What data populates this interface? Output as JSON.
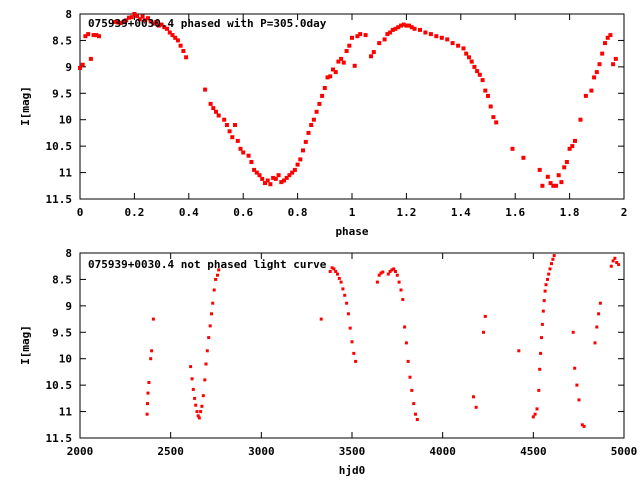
{
  "chart_data": [
    {
      "type": "scatter",
      "title": "075939+0030.4 phased with P=305.0day",
      "xlabel": "phase",
      "ylabel": "I[mag]",
      "xlim": [
        0,
        2
      ],
      "ylim": [
        11.5,
        8
      ],
      "y_inverted": true,
      "grid": false,
      "marker_color": "#ff0000",
      "x_ticks": [
        "0",
        "0.2",
        "0.4",
        "0.6",
        "0.8",
        "1",
        "1.2",
        "1.4",
        "1.6",
        "1.8",
        "2"
      ],
      "y_ticks": [
        "8",
        "8.5",
        "9",
        "9.5",
        "10",
        "10.5",
        "11",
        "11.5"
      ],
      "series": [
        {
          "points": [
            [
              0.0,
              9.02
            ],
            [
              0.01,
              8.96
            ],
            [
              0.02,
              8.42
            ],
            [
              0.03,
              8.38
            ],
            [
              0.04,
              8.85
            ],
            [
              0.05,
              8.4
            ],
            [
              0.06,
              8.4
            ],
            [
              0.07,
              8.42
            ],
            [
              0.13,
              8.15
            ],
            [
              0.14,
              8.16
            ],
            [
              0.15,
              8.17
            ],
            [
              0.16,
              8.15
            ],
            [
              0.17,
              8.12
            ],
            [
              0.18,
              8.07
            ],
            [
              0.19,
              8.06
            ],
            [
              0.2,
              8.0
            ],
            [
              0.21,
              8.04
            ],
            [
              0.22,
              8.1
            ],
            [
              0.23,
              8.05
            ],
            [
              0.24,
              8.12
            ],
            [
              0.25,
              8.08
            ],
            [
              0.26,
              8.14
            ],
            [
              0.27,
              8.18
            ],
            [
              0.28,
              8.15
            ],
            [
              0.29,
              8.22
            ],
            [
              0.3,
              8.2
            ],
            [
              0.31,
              8.25
            ],
            [
              0.32,
              8.28
            ],
            [
              0.33,
              8.35
            ],
            [
              0.34,
              8.4
            ],
            [
              0.35,
              8.45
            ],
            [
              0.36,
              8.5
            ],
            [
              0.37,
              8.6
            ],
            [
              0.38,
              8.7
            ],
            [
              0.39,
              8.82
            ],
            [
              0.46,
              9.43
            ],
            [
              0.48,
              9.7
            ],
            [
              0.49,
              9.78
            ],
            [
              0.5,
              9.85
            ],
            [
              0.51,
              9.92
            ],
            [
              0.53,
              10.0
            ],
            [
              0.54,
              10.1
            ],
            [
              0.55,
              10.22
            ],
            [
              0.56,
              10.33
            ],
            [
              0.57,
              10.1
            ],
            [
              0.58,
              10.4
            ],
            [
              0.59,
              10.55
            ],
            [
              0.6,
              10.62
            ],
            [
              0.62,
              10.68
            ],
            [
              0.63,
              10.8
            ],
            [
              0.64,
              10.95
            ],
            [
              0.65,
              11.0
            ],
            [
              0.66,
              11.05
            ],
            [
              0.67,
              11.12
            ],
            [
              0.68,
              11.2
            ],
            [
              0.69,
              11.15
            ],
            [
              0.7,
              11.22
            ],
            [
              0.71,
              11.1
            ],
            [
              0.72,
              11.12
            ],
            [
              0.73,
              11.05
            ],
            [
              0.74,
              11.18
            ],
            [
              0.75,
              11.15
            ],
            [
              0.76,
              11.1
            ],
            [
              0.77,
              11.05
            ],
            [
              0.78,
              11.0
            ],
            [
              0.79,
              10.95
            ],
            [
              0.8,
              10.85
            ],
            [
              0.81,
              10.75
            ],
            [
              0.82,
              10.58
            ],
            [
              0.83,
              10.42
            ],
            [
              0.84,
              10.25
            ],
            [
              0.85,
              10.1
            ],
            [
              0.86,
              10.0
            ],
            [
              0.87,
              9.85
            ],
            [
              0.88,
              9.7
            ],
            [
              0.89,
              9.55
            ],
            [
              0.9,
              9.4
            ],
            [
              0.91,
              9.2
            ],
            [
              0.92,
              9.18
            ],
            [
              0.93,
              9.05
            ],
            [
              0.94,
              9.1
            ],
            [
              0.95,
              8.9
            ],
            [
              0.96,
              8.85
            ],
            [
              0.97,
              8.92
            ],
            [
              0.98,
              8.7
            ],
            [
              0.99,
              8.6
            ],
            [
              1.0,
              8.45
            ],
            [
              1.01,
              8.98
            ],
            [
              1.02,
              8.42
            ],
            [
              1.03,
              8.38
            ],
            [
              1.05,
              8.4
            ],
            [
              1.07,
              8.8
            ],
            [
              1.08,
              8.72
            ],
            [
              1.1,
              8.55
            ],
            [
              1.12,
              8.48
            ],
            [
              1.13,
              8.38
            ],
            [
              1.14,
              8.35
            ],
            [
              1.15,
              8.3
            ],
            [
              1.16,
              8.28
            ],
            [
              1.17,
              8.25
            ],
            [
              1.18,
              8.22
            ],
            [
              1.19,
              8.2
            ],
            [
              1.2,
              8.22
            ],
            [
              1.21,
              8.22
            ],
            [
              1.22,
              8.25
            ],
            [
              1.23,
              8.28
            ],
            [
              1.25,
              8.3
            ],
            [
              1.27,
              8.35
            ],
            [
              1.29,
              8.38
            ],
            [
              1.31,
              8.42
            ],
            [
              1.33,
              8.45
            ],
            [
              1.35,
              8.48
            ],
            [
              1.37,
              8.55
            ],
            [
              1.39,
              8.6
            ],
            [
              1.41,
              8.65
            ],
            [
              1.42,
              8.75
            ],
            [
              1.43,
              8.82
            ],
            [
              1.44,
              8.9
            ],
            [
              1.45,
              9.0
            ],
            [
              1.46,
              9.08
            ],
            [
              1.47,
              9.15
            ],
            [
              1.48,
              9.25
            ],
            [
              1.49,
              9.45
            ],
            [
              1.5,
              9.55
            ],
            [
              1.51,
              9.75
            ],
            [
              1.52,
              9.95
            ],
            [
              1.53,
              10.05
            ],
            [
              1.59,
              10.55
            ],
            [
              1.63,
              10.72
            ],
            [
              1.69,
              10.95
            ],
            [
              1.7,
              11.25
            ],
            [
              1.72,
              11.08
            ],
            [
              1.73,
              11.2
            ],
            [
              1.74,
              11.25
            ],
            [
              1.75,
              11.25
            ],
            [
              1.76,
              11.05
            ],
            [
              1.77,
              11.18
            ],
            [
              1.78,
              10.9
            ],
            [
              1.79,
              10.8
            ],
            [
              1.8,
              10.55
            ],
            [
              1.81,
              10.5
            ],
            [
              1.82,
              10.4
            ],
            [
              1.84,
              10.0
            ],
            [
              1.86,
              9.55
            ],
            [
              1.88,
              9.45
            ],
            [
              1.89,
              9.2
            ],
            [
              1.9,
              9.1
            ],
            [
              1.91,
              8.95
            ],
            [
              1.92,
              8.75
            ],
            [
              1.93,
              8.55
            ],
            [
              1.94,
              8.45
            ],
            [
              1.95,
              8.4
            ],
            [
              1.96,
              8.95
            ],
            [
              1.97,
              8.85
            ]
          ]
        }
      ]
    },
    {
      "type": "scatter",
      "title": "075939+0030.4 not phased light curve",
      "xlabel": "hjd0",
      "ylabel": "I[mag]",
      "xlim": [
        2000,
        5000
      ],
      "ylim": [
        11.5,
        8
      ],
      "y_inverted": true,
      "grid": false,
      "marker_color": "#ff0000",
      "x_ticks": [
        "2000",
        "2500",
        "3000",
        "3500",
        "4000",
        "4500",
        "5000"
      ],
      "y_ticks": [
        "8",
        "8.5",
        "9",
        "9.5",
        "10",
        "10.5",
        "11",
        "11.5"
      ],
      "series": [
        {
          "points": [
            [
              2370,
              11.05
            ],
            [
              2372,
              10.85
            ],
            [
              2375,
              10.65
            ],
            [
              2380,
              10.45
            ],
            [
              2390,
              10.0
            ],
            [
              2395,
              9.85
            ],
            [
              2405,
              9.25
            ],
            [
              2610,
              10.15
            ],
            [
              2618,
              10.38
            ],
            [
              2625,
              10.58
            ],
            [
              2632,
              10.75
            ],
            [
              2638,
              10.88
            ],
            [
              2645,
              11.0
            ],
            [
              2652,
              11.08
            ],
            [
              2658,
              11.12
            ],
            [
              2665,
              11.0
            ],
            [
              2672,
              10.9
            ],
            [
              2680,
              10.7
            ],
            [
              2688,
              10.4
            ],
            [
              2695,
              10.1
            ],
            [
              2702,
              9.85
            ],
            [
              2710,
              9.6
            ],
            [
              2718,
              9.38
            ],
            [
              2725,
              9.15
            ],
            [
              2732,
              8.95
            ],
            [
              2740,
              8.7
            ],
            [
              2748,
              8.5
            ],
            [
              2758,
              8.42
            ],
            [
              2765,
              8.32
            ],
            [
              3330,
              9.25
            ],
            [
              3380,
              8.35
            ],
            [
              3390,
              8.28
            ],
            [
              3400,
              8.3
            ],
            [
              3410,
              8.35
            ],
            [
              3420,
              8.4
            ],
            [
              3430,
              8.48
            ],
            [
              3440,
              8.55
            ],
            [
              3450,
              8.68
            ],
            [
              3460,
              8.8
            ],
            [
              3470,
              8.95
            ],
            [
              3480,
              9.15
            ],
            [
              3490,
              9.42
            ],
            [
              3500,
              9.68
            ],
            [
              3510,
              9.9
            ],
            [
              3520,
              10.05
            ],
            [
              3640,
              8.55
            ],
            [
              3650,
              8.42
            ],
            [
              3660,
              8.38
            ],
            [
              3670,
              8.36
            ],
            [
              3700,
              8.4
            ],
            [
              3710,
              8.35
            ],
            [
              3720,
              8.32
            ],
            [
              3730,
              8.3
            ],
            [
              3740,
              8.35
            ],
            [
              3750,
              8.42
            ],
            [
              3760,
              8.55
            ],
            [
              3770,
              8.7
            ],
            [
              3780,
              8.88
            ],
            [
              3790,
              9.4
            ],
            [
              3800,
              9.7
            ],
            [
              3810,
              10.05
            ],
            [
              3820,
              10.35
            ],
            [
              3830,
              10.6
            ],
            [
              3840,
              10.85
            ],
            [
              3850,
              11.05
            ],
            [
              3860,
              11.15
            ],
            [
              4170,
              10.72
            ],
            [
              4185,
              10.92
            ],
            [
              4225,
              9.5
            ],
            [
              4235,
              9.2
            ],
            [
              4420,
              9.85
            ],
            [
              4500,
              11.1
            ],
            [
              4510,
              11.05
            ],
            [
              4520,
              10.95
            ],
            [
              4530,
              10.6
            ],
            [
              4535,
              10.2
            ],
            [
              4540,
              9.9
            ],
            [
              4545,
              9.6
            ],
            [
              4550,
              9.35
            ],
            [
              4555,
              9.1
            ],
            [
              4560,
              8.9
            ],
            [
              4565,
              8.72
            ],
            [
              4570,
              8.6
            ],
            [
              4578,
              8.5
            ],
            [
              4585,
              8.4
            ],
            [
              4592,
              8.3
            ],
            [
              4600,
              8.2
            ],
            [
              4608,
              8.12
            ],
            [
              4615,
              8.05
            ],
            [
              4720,
              9.5
            ],
            [
              4728,
              10.18
            ],
            [
              4740,
              10.5
            ],
            [
              4752,
              10.78
            ],
            [
              4770,
              11.25
            ],
            [
              4780,
              11.28
            ],
            [
              4840,
              9.7
            ],
            [
              4850,
              9.4
            ],
            [
              4860,
              9.15
            ],
            [
              4870,
              8.95
            ],
            [
              4930,
              8.25
            ],
            [
              4940,
              8.15
            ],
            [
              4950,
              8.1
            ],
            [
              4960,
              8.18
            ],
            [
              4970,
              8.22
            ]
          ]
        }
      ]
    }
  ]
}
